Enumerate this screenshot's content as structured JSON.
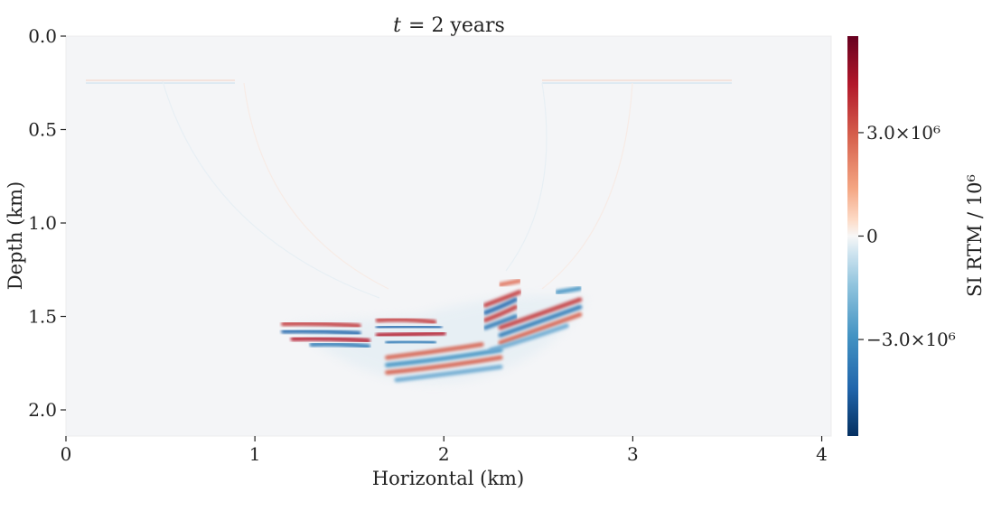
{
  "chart_data": {
    "type": "heatmap",
    "title": "t = 2 years",
    "title_parts": {
      "variable": "t",
      "rest": "= 2 years"
    },
    "xlabel": "Horizontal (km)",
    "ylabel": "Depth (km)",
    "xlim": [
      0,
      4.05
    ],
    "ylim": [
      2.14,
      0
    ],
    "x_ticks": [
      "0",
      "1",
      "2",
      "3",
      "4"
    ],
    "y_ticks": [
      "0.0",
      "0.5",
      "1.0",
      "1.5",
      "2.0"
    ],
    "colorbar": {
      "label": "SI RTM / 10⁶",
      "ticks": [
        "3.0×10⁶",
        "0",
        "−3.0×10⁶"
      ],
      "range": [
        -5800000.0,
        5800000.0
      ],
      "colormap": "RdBu_r",
      "colors": {
        "low": "#053061",
        "mid": "#f7f7f7",
        "high": "#67001f"
      }
    },
    "background_color": "#f4f5f7",
    "reflectors": [
      {
        "x": [
          1.15,
          1.35,
          1.55
        ],
        "depth": [
          1.54,
          1.535,
          1.55
        ],
        "amplitude": 0.75
      },
      {
        "x": [
          1.15,
          1.35,
          1.55
        ],
        "depth": [
          1.58,
          1.575,
          1.59
        ],
        "amplitude": -0.85
      },
      {
        "x": [
          1.2,
          1.4,
          1.6
        ],
        "depth": [
          1.62,
          1.615,
          1.63
        ],
        "amplitude": 0.95
      },
      {
        "x": [
          1.3,
          1.45,
          1.6
        ],
        "depth": [
          1.65,
          1.645,
          1.66
        ],
        "amplitude": -0.7
      },
      {
        "x": [
          1.65,
          1.8,
          1.95
        ],
        "depth": [
          1.52,
          1.51,
          1.53
        ],
        "amplitude": 0.7
      },
      {
        "x": [
          1.65,
          1.8,
          1.98
        ],
        "depth": [
          1.56,
          1.55,
          1.56
        ],
        "amplitude": -0.95
      },
      {
        "x": [
          1.65,
          1.8,
          2.0
        ],
        "depth": [
          1.6,
          1.595,
          1.59
        ],
        "amplitude": 0.85
      },
      {
        "x": [
          1.7,
          1.8,
          1.95
        ],
        "depth": [
          1.64,
          1.63,
          1.64
        ],
        "amplitude": -0.7
      },
      {
        "x": [
          1.7,
          1.95,
          2.2
        ],
        "depth": [
          1.72,
          1.69,
          1.65
        ],
        "amplitude": 0.6
      },
      {
        "x": [
          1.7,
          2.0,
          2.3
        ],
        "depth": [
          1.76,
          1.73,
          1.68
        ],
        "amplitude": -0.6
      },
      {
        "x": [
          1.7,
          2.0,
          2.3
        ],
        "depth": [
          1.8,
          1.77,
          1.72
        ],
        "amplitude": 0.55
      },
      {
        "x": [
          1.75,
          2.0,
          2.3
        ],
        "depth": [
          1.84,
          1.81,
          1.77
        ],
        "amplitude": -0.45
      },
      {
        "x": [
          2.22,
          2.3,
          2.4
        ],
        "depth": [
          1.44,
          1.41,
          1.37
        ],
        "amplitude": 0.7
      },
      {
        "x": [
          2.22,
          2.3,
          2.38
        ],
        "depth": [
          1.48,
          1.45,
          1.41
        ],
        "amplitude": -0.85
      },
      {
        "x": [
          2.22,
          2.3,
          2.38
        ],
        "depth": [
          1.52,
          1.49,
          1.45
        ],
        "amplitude": 0.75
      },
      {
        "x": [
          2.22,
          2.3,
          2.38
        ],
        "depth": [
          1.56,
          1.53,
          1.5
        ],
        "amplitude": -0.8
      },
      {
        "x": [
          2.3,
          2.5,
          2.72
        ],
        "depth": [
          1.56,
          1.49,
          1.41
        ],
        "amplitude": 0.8
      },
      {
        "x": [
          2.3,
          2.5,
          2.72
        ],
        "depth": [
          1.6,
          1.53,
          1.45
        ],
        "amplitude": -0.8
      },
      {
        "x": [
          2.3,
          2.5,
          2.72
        ],
        "depth": [
          1.64,
          1.57,
          1.49
        ],
        "amplitude": 0.6
      },
      {
        "x": [
          2.25,
          2.45,
          2.65
        ],
        "depth": [
          1.68,
          1.62,
          1.55
        ],
        "amplitude": -0.45
      },
      {
        "x": [
          2.3,
          2.35,
          2.4
        ],
        "depth": [
          1.33,
          1.32,
          1.31
        ],
        "amplitude": 0.45
      },
      {
        "x": [
          2.6,
          2.66,
          2.72
        ],
        "depth": [
          1.37,
          1.36,
          1.35
        ],
        "amplitude": -0.5
      }
    ]
  }
}
